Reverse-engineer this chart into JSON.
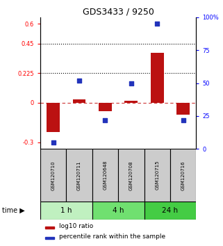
{
  "title": "GDS3433 / 9250",
  "samples": [
    "GSM120710",
    "GSM120711",
    "GSM120648",
    "GSM120708",
    "GSM120715",
    "GSM120716"
  ],
  "log10_ratio": [
    -0.22,
    0.025,
    -0.065,
    0.015,
    0.38,
    -0.09
  ],
  "percentile_rank": [
    5,
    52,
    22,
    50,
    95,
    22
  ],
  "time_groups": [
    {
      "label": "1 h",
      "start": 0,
      "end": 2,
      "color": "#c0f0c0"
    },
    {
      "label": "4 h",
      "start": 2,
      "end": 4,
      "color": "#70e070"
    },
    {
      "label": "24 h",
      "start": 4,
      "end": 6,
      "color": "#44cc44"
    }
  ],
  "ylim_left": [
    -0.35,
    0.65
  ],
  "ylim_right": [
    0,
    100
  ],
  "yticks_left": [
    -0.3,
    0.0,
    0.225,
    0.45,
    0.6
  ],
  "yticks_left_labels": [
    "-0.3",
    "0",
    "0.225",
    "0.45",
    "0.6"
  ],
  "yticks_right": [
    0,
    25,
    50,
    75,
    100
  ],
  "yticks_right_labels": [
    "0",
    "25",
    "50",
    "75",
    "100%"
  ],
  "hlines": [
    0.45,
    0.225
  ],
  "bar_color": "#bb1111",
  "dot_color": "#2233bb",
  "zero_line_color": "#cc3333",
  "background_color": "#ffffff",
  "bar_width": 0.5,
  "dot_size": 25,
  "label_bg_color": "#cccccc",
  "legend_red_label": "log10 ratio",
  "legend_blue_label": "percentile rank within the sample"
}
